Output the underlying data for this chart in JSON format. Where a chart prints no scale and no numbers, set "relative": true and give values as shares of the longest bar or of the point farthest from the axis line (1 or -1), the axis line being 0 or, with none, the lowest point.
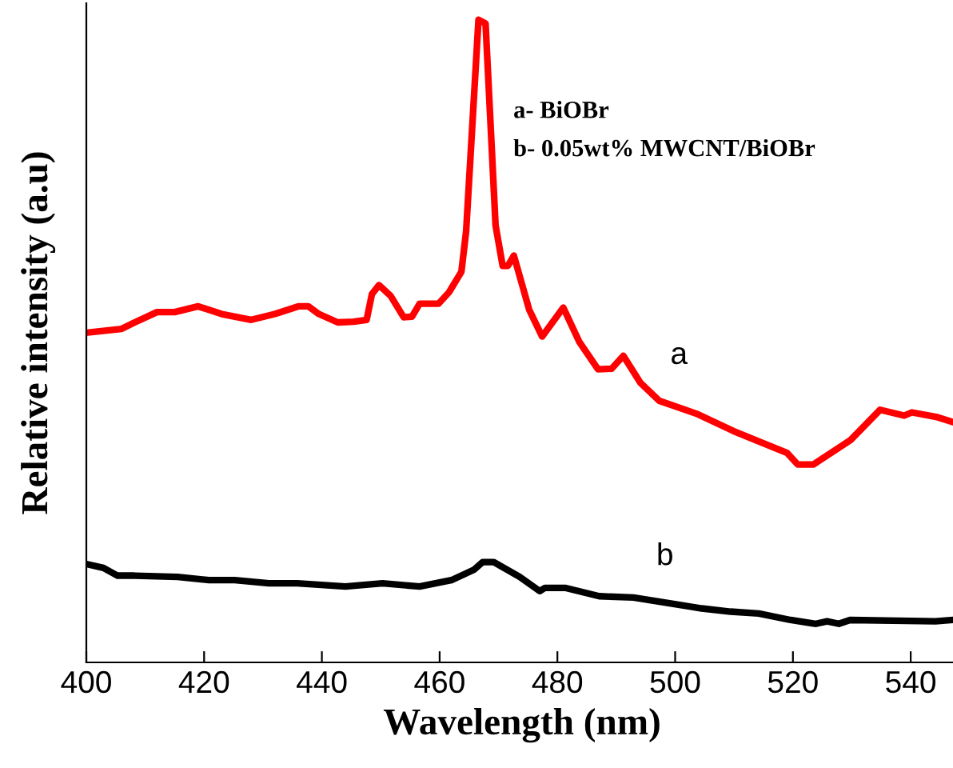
{
  "chart_data": {
    "type": "line",
    "relative": true,
    "xlabel": "Wavelength (nm)",
    "ylabel": "Relative intensity (a.u)",
    "xlim": [
      400,
      548
    ],
    "xticks": [
      400,
      420,
      440,
      460,
      480,
      500,
      520,
      540
    ],
    "grid": false,
    "marker": "none",
    "line_style": "solid",
    "series": [
      {
        "color": "#ff0000",
        "x": [
          400,
          406,
          408,
          412,
          415,
          419,
          423,
          428,
          432,
          436,
          437.7,
          439.5,
          442.7,
          445.4,
          447.6,
          448.5,
          449.7,
          451.7,
          453.9,
          455.3,
          456.6,
          459.8,
          461.6,
          463.7,
          464.5,
          466.6,
          467.8,
          469.5,
          470.7,
          471.6,
          472.6,
          475.2,
          477.4,
          481.0,
          483.7,
          486.9,
          489.2,
          491.2,
          494.1,
          497.3,
          503.6,
          509.9,
          519.0,
          520.8,
          523.5,
          529.8,
          534.8,
          538.9,
          540.2,
          544.3,
          546.8
        ],
        "values": [
          0.513,
          0.519,
          0.528,
          0.545,
          0.545,
          0.554,
          0.542,
          0.533,
          0.542,
          0.554,
          0.554,
          0.542,
          0.529,
          0.53,
          0.533,
          0.573,
          0.587,
          0.57,
          0.537,
          0.538,
          0.558,
          0.558,
          0.576,
          0.608,
          0.671,
          1.0,
          0.994,
          0.68,
          0.617,
          0.617,
          0.633,
          0.549,
          0.507,
          0.552,
          0.499,
          0.456,
          0.457,
          0.477,
          0.435,
          0.407,
          0.387,
          0.36,
          0.326,
          0.308,
          0.308,
          0.346,
          0.393,
          0.384,
          0.389,
          0.382,
          0.375
        ]
      },
      {
        "color": "#000000",
        "x": [
          400,
          402.9,
          405.3,
          408.2,
          415.5,
          420.8,
          425.2,
          431,
          435.8,
          444,
          450.3,
          456.6,
          462,
          465.8,
          467.3,
          469.2,
          473.6,
          477,
          477.9,
          481.3,
          487.1,
          492.9,
          499.7,
          504.5,
          509.4,
          514.2,
          519.6,
          523.9,
          525.8,
          527.8,
          529.7,
          544.2,
          547.1
        ],
        "values": [
          0.153,
          0.147,
          0.135,
          0.135,
          0.133,
          0.128,
          0.128,
          0.123,
          0.123,
          0.118,
          0.123,
          0.118,
          0.128,
          0.144,
          0.156,
          0.156,
          0.133,
          0.111,
          0.116,
          0.116,
          0.103,
          0.101,
          0.091,
          0.084,
          0.079,
          0.076,
          0.066,
          0.06,
          0.064,
          0.06,
          0.066,
          0.064,
          0.066
        ]
      }
    ],
    "annotations": [
      "a",
      "b",
      "a- BiOBr",
      "b- 0.05wt% MWCNT/BiOBr"
    ]
  }
}
